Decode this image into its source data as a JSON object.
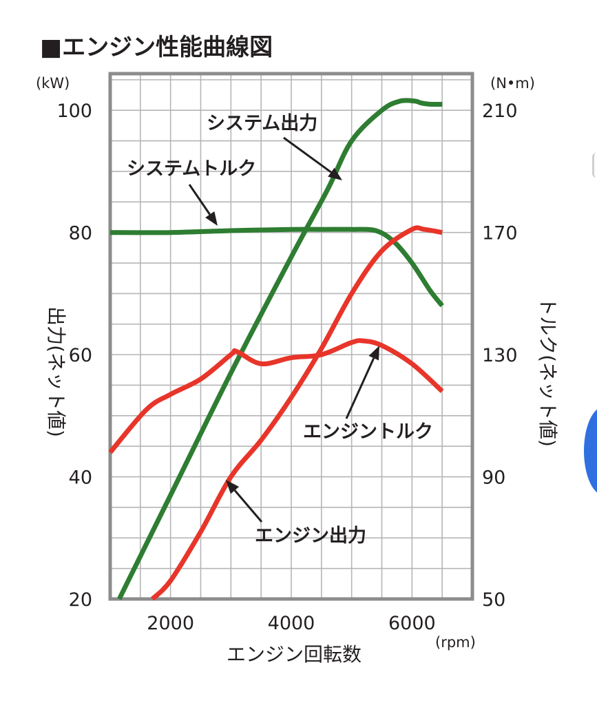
{
  "chart_data": {
    "type": "line",
    "title": "■エンジン性能曲線図",
    "xlabel": "エンジン回転数",
    "x_unit": "(rpm)",
    "ylabel_left": "出力(ネット値)",
    "y_unit_left": "(kW)",
    "ylabel_right": "トルク(ネット値)",
    "y_unit_right": "(N•m)",
    "xlim": [
      1000,
      7000
    ],
    "ylim_left": [
      20,
      106
    ],
    "ylim_right": [
      50,
      222
    ],
    "x_ticks": [
      2000,
      4000,
      6000
    ],
    "y_ticks_left": [
      100,
      80,
      60,
      40,
      20
    ],
    "y_ticks_right": [
      210,
      170,
      130,
      90,
      50
    ],
    "grid": true,
    "colors": {
      "system": "#2e7d32",
      "engine": "#e8352a",
      "grid": "#b5b5b5",
      "frame": "#8c8c8c"
    },
    "series": [
      {
        "name": "システム出力",
        "axis": "left",
        "color": "#2e7d32",
        "x": [
          1150,
          2000,
          3000,
          4000,
          4600,
          5000,
          5500,
          5800,
          6050,
          6150,
          6300,
          6500
        ],
        "y": [
          20,
          37,
          57,
          76,
          87,
          95,
          100,
          101.5,
          101.5,
          101.2,
          101,
          101
        ]
      },
      {
        "name": "システムトルク",
        "axis": "left",
        "color": "#2e7d32",
        "x": [
          1000,
          2000,
          3000,
          4000,
          4500,
          5000,
          5400,
          5700,
          6000,
          6300,
          6500
        ],
        "y": [
          80,
          80,
          80.3,
          80.5,
          80.5,
          80.5,
          80.3,
          78.5,
          75,
          70.5,
          68
        ]
      },
      {
        "name": "エンジン出力",
        "axis": "left",
        "color": "#e8352a",
        "x": [
          1700,
          2000,
          2500,
          3000,
          3500,
          4000,
          4500,
          5000,
          5500,
          6000,
          6200,
          6500
        ],
        "y": [
          20,
          23,
          31,
          40,
          46,
          53,
          61,
          70,
          77,
          80.5,
          80.5,
          80
        ]
      },
      {
        "name": "エンジントルク",
        "axis": "right",
        "color": "#e8352a",
        "x": [
          1000,
          1600,
          2000,
          2500,
          3000,
          3100,
          3500,
          4000,
          4500,
          5000,
          5200,
          5500,
          6000,
          6500
        ],
        "y": [
          98,
          112,
          117,
          122,
          130,
          131,
          127,
          129,
          130,
          134,
          134.5,
          133,
          127,
          118
        ]
      }
    ],
    "annotations": [
      {
        "text": "システム出力",
        "target_series": "システム出力"
      },
      {
        "text": "システムトルク",
        "target_series": "システムトルク"
      },
      {
        "text": "エンジントルク",
        "target_series": "エンジントルク"
      },
      {
        "text": "エンジン出力",
        "target_series": "エンジン出力"
      }
    ]
  }
}
